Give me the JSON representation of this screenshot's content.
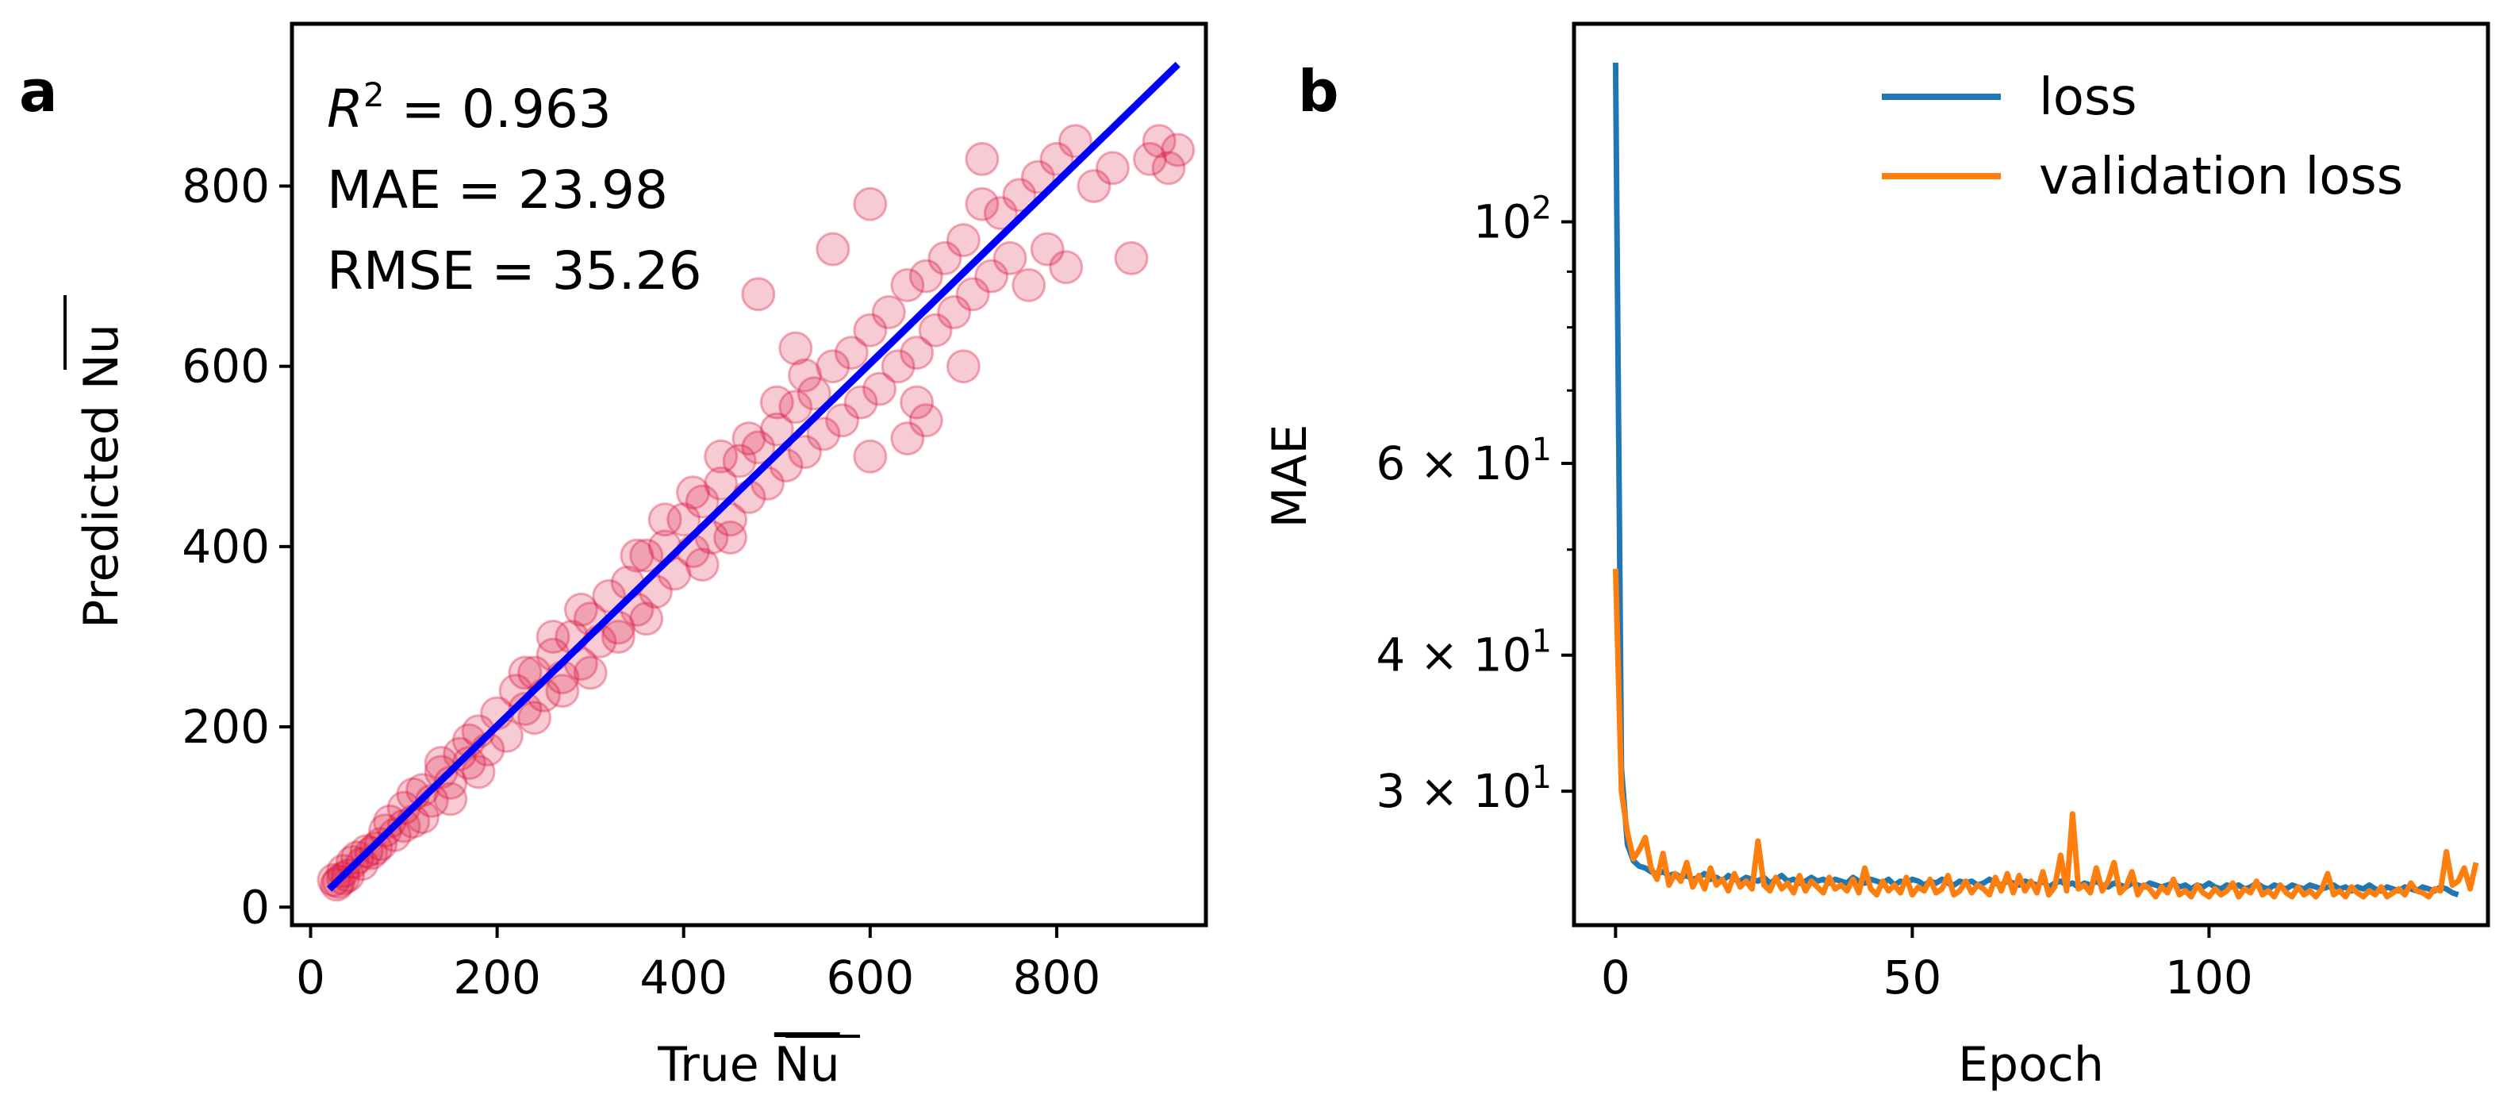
{
  "panels": {
    "a": {
      "letter": "a"
    },
    "b": {
      "letter": "b"
    }
  },
  "chart_data": [
    {
      "type": "scatter",
      "panel": "a",
      "xlabel": "True Nu",
      "ylabel": "Predicted Nu",
      "xlabel_parts": [
        "True ",
        "Nu"
      ],
      "ylabel_parts": [
        "Predicted ",
        "Nu"
      ],
      "xlim": [
        -20,
        960
      ],
      "ylim": [
        -20,
        980
      ],
      "xticks": [
        0,
        200,
        400,
        600,
        800
      ],
      "yticks": [
        0,
        200,
        400,
        600,
        800
      ],
      "xtick_labels": [
        "0",
        "200",
        "400",
        "600",
        "800"
      ],
      "ytick_labels": [
        "0",
        "200",
        "400",
        "600",
        "800"
      ],
      "annotations": {
        "r2_symbol": "R",
        "r2_exp": "2",
        "r2_value": " = 0.963",
        "mae": "MAE = 23.98",
        "rmse": "RMSE = 35.26"
      },
      "fit_line": {
        "x": [
          20,
          930
        ],
        "y": [
          20,
          935
        ],
        "color": "#0000ff"
      },
      "point_color": "#dc143c",
      "points": [
        [
          25,
          30
        ],
        [
          30,
          28
        ],
        [
          35,
          40
        ],
        [
          40,
          35
        ],
        [
          45,
          50
        ],
        [
          55,
          48
        ],
        [
          60,
          62
        ],
        [
          70,
          65
        ],
        [
          80,
          85
        ],
        [
          90,
          80
        ],
        [
          100,
          110
        ],
        [
          110,
          95
        ],
        [
          120,
          130
        ],
        [
          130,
          118
        ],
        [
          140,
          150
        ],
        [
          150,
          138
        ],
        [
          160,
          170
        ],
        [
          170,
          160
        ],
        [
          180,
          195
        ],
        [
          190,
          175
        ],
        [
          200,
          215
        ],
        [
          210,
          190
        ],
        [
          220,
          240
        ],
        [
          230,
          220
        ],
        [
          240,
          260
        ],
        [
          250,
          235
        ],
        [
          260,
          280
        ],
        [
          270,
          255
        ],
        [
          280,
          300
        ],
        [
          290,
          270
        ],
        [
          300,
          320
        ],
        [
          310,
          295
        ],
        [
          320,
          345
        ],
        [
          330,
          310
        ],
        [
          340,
          360
        ],
        [
          350,
          330
        ],
        [
          360,
          390
        ],
        [
          370,
          350
        ],
        [
          380,
          400
        ],
        [
          390,
          370
        ],
        [
          400,
          430
        ],
        [
          410,
          395
        ],
        [
          420,
          450
        ],
        [
          430,
          410
        ],
        [
          440,
          470
        ],
        [
          450,
          430
        ],
        [
          460,
          495
        ],
        [
          470,
          455
        ],
        [
          480,
          510
        ],
        [
          490,
          470
        ],
        [
          500,
          530
        ],
        [
          510,
          490
        ],
        [
          520,
          555
        ],
        [
          530,
          505
        ],
        [
          540,
          570
        ],
        [
          550,
          525
        ],
        [
          560,
          600
        ],
        [
          570,
          540
        ],
        [
          580,
          615
        ],
        [
          590,
          560
        ],
        [
          600,
          640
        ],
        [
          610,
          575
        ],
        [
          620,
          660
        ],
        [
          630,
          600
        ],
        [
          640,
          690
        ],
        [
          650,
          615
        ],
        [
          660,
          700
        ],
        [
          670,
          640
        ],
        [
          680,
          720
        ],
        [
          690,
          660
        ],
        [
          700,
          740
        ],
        [
          710,
          680
        ],
        [
          720,
          780
        ],
        [
          730,
          700
        ],
        [
          740,
          770
        ],
        [
          750,
          720
        ],
        [
          760,
          790
        ],
        [
          770,
          690
        ],
        [
          780,
          810
        ],
        [
          790,
          730
        ],
        [
          800,
          830
        ],
        [
          810,
          710
        ],
        [
          820,
          850
        ],
        [
          840,
          800
        ],
        [
          860,
          820
        ],
        [
          880,
          720
        ],
        [
          900,
          830
        ],
        [
          910,
          850
        ],
        [
          920,
          820
        ],
        [
          930,
          840
        ],
        [
          480,
          680
        ],
        [
          560,
          730
        ],
        [
          520,
          620
        ],
        [
          600,
          780
        ],
        [
          650,
          560
        ],
        [
          700,
          600
        ],
        [
          640,
          520
        ],
        [
          720,
          830
        ],
        [
          600,
          500
        ],
        [
          660,
          540
        ],
        [
          150,
          120
        ],
        [
          180,
          150
        ],
        [
          120,
          100
        ],
        [
          240,
          210
        ],
        [
          270,
          240
        ],
        [
          300,
          260
        ],
        [
          330,
          300
        ],
        [
          360,
          320
        ],
        [
          420,
          380
        ],
        [
          450,
          410
        ],
        [
          230,
          260
        ],
        [
          260,
          300
        ],
        [
          290,
          330
        ],
        [
          350,
          390
        ],
        [
          380,
          430
        ],
        [
          410,
          460
        ],
        [
          440,
          500
        ],
        [
          470,
          520
        ],
        [
          500,
          560
        ],
        [
          530,
          590
        ],
        [
          100,
          90
        ],
        [
          85,
          95
        ],
        [
          75,
          70
        ],
        [
          65,
          60
        ],
        [
          50,
          55
        ],
        [
          35,
          32
        ],
        [
          28,
          25
        ],
        [
          110,
          125
        ],
        [
          140,
          160
        ],
        [
          170,
          185
        ]
      ]
    },
    {
      "type": "line",
      "panel": "b",
      "xlabel": "Epoch",
      "ylabel": "MAE",
      "xlim": [
        -7,
        147
      ],
      "ylim_log": [
        22.6,
        152
      ],
      "yscale": "log",
      "xticks": [
        0,
        50,
        100
      ],
      "xtick_labels": [
        "0",
        "50",
        "100"
      ],
      "ytick_major": [
        {
          "value": 100,
          "base": "10",
          "exp": "2",
          "mult": ""
        },
        {
          "value": 60,
          "base": "10",
          "exp": "1",
          "mult": "6 × "
        },
        {
          "value": 40,
          "base": "10",
          "exp": "1",
          "mult": "4 × "
        },
        {
          "value": 30,
          "base": "10",
          "exp": "1",
          "mult": "3 × "
        }
      ],
      "ytick_minor": [
        90,
        80,
        70,
        50
      ],
      "legend_position": "top-right",
      "series": [
        {
          "name": "loss",
          "color": "#1f77b4",
          "x_start": 0,
          "values": [
            140,
            31.5,
            26.8,
            25.9,
            25.6,
            25.5,
            25.3,
            25.2,
            25.3,
            25.1,
            25.2,
            25.0,
            25.1,
            24.9,
            25.0,
            25.2,
            24.9,
            25.0,
            24.8,
            25.1,
            24.9,
            24.8,
            25.0,
            24.9,
            24.8,
            25.0,
            24.7,
            24.9,
            25.1,
            24.8,
            24.9,
            24.7,
            24.8,
            25.0,
            24.8,
            24.9,
            24.7,
            24.9,
            24.8,
            24.7,
            25.0,
            24.8,
            24.7,
            24.9,
            24.8,
            24.7,
            24.9,
            24.6,
            24.8,
            24.7,
            24.9,
            24.8,
            24.6,
            24.8,
            24.7,
            24.9,
            24.7,
            24.6,
            24.8,
            24.7,
            24.8,
            24.6,
            24.7,
            24.9,
            24.7,
            24.6,
            24.8,
            24.7,
            24.6,
            24.8,
            24.7,
            24.6,
            24.8,
            24.5,
            24.7,
            24.8,
            24.6,
            24.7,
            24.5,
            24.7,
            24.6,
            24.8,
            24.6,
            24.5,
            24.7,
            24.6,
            24.5,
            24.7,
            24.6,
            24.5,
            24.7,
            24.6,
            24.5,
            24.6,
            24.7,
            24.5,
            24.6,
            24.4,
            24.6,
            24.5,
            24.7,
            24.5,
            24.4,
            24.6,
            24.5,
            24.6,
            24.4,
            24.5,
            24.7,
            24.5,
            24.4,
            24.6,
            24.5,
            24.4,
            24.6,
            24.5,
            24.4,
            24.6,
            24.5,
            24.4,
            24.5,
            24.6,
            24.4,
            24.5,
            24.3,
            24.5,
            24.4,
            24.6,
            24.4,
            24.3,
            24.5,
            24.4,
            24.3,
            24.5,
            24.4,
            24.3,
            24.5,
            24.4,
            24.3,
            24.5,
            24.4,
            24.2,
            24.1
          ]
        },
        {
          "name": "validation loss",
          "color": "#ff7f0e",
          "x_start": 0,
          "values": [
            48,
            30,
            27.5,
            26,
            26.5,
            27.2,
            25.5,
            24.9,
            26.3,
            24.6,
            25.2,
            24.8,
            25.8,
            24.5,
            25.1,
            24.4,
            25.5,
            24.6,
            24.9,
            24.3,
            25.2,
            24.5,
            24.8,
            24.4,
            27.0,
            24.6,
            24.3,
            25.0,
            24.4,
            24.7,
            24.2,
            25.1,
            24.3,
            24.8,
            24.5,
            24.2,
            25.0,
            24.4,
            24.6,
            24.3,
            24.9,
            24.2,
            25.5,
            24.4,
            24.1,
            24.8,
            24.3,
            24.6,
            24.2,
            25.0,
            24.1,
            24.5,
            24.3,
            24.9,
            24.2,
            24.4,
            25.1,
            24.1,
            24.3,
            24.8,
            24.2,
            24.6,
            24.4,
            24.1,
            25.0,
            24.3,
            25.2,
            24.2,
            25.1,
            24.3,
            24.8,
            24.2,
            25.3,
            24.1,
            24.5,
            26.2,
            24.3,
            28.6,
            24.4,
            24.6,
            24.2,
            25.5,
            24.3,
            24.8,
            25.8,
            24.2,
            24.5,
            25.3,
            24.1,
            24.6,
            24.4,
            24.0,
            24.5,
            24.2,
            24.9,
            24.1,
            24.3,
            24.0,
            24.6,
            24.2,
            24.0,
            24.4,
            24.1,
            24.3,
            24.7,
            24.0,
            24.4,
            24.2,
            24.8,
            24.1,
            24.3,
            24.0,
            24.6,
            24.2,
            24.0,
            24.5,
            24.1,
            24.3,
            24.0,
            24.4,
            25.2,
            24.1,
            24.3,
            24.0,
            24.5,
            24.2,
            24.0,
            24.3,
            24.1,
            24.5,
            24.0,
            24.2,
            24.4,
            24.1,
            24.7,
            24.3,
            24.2,
            24.0,
            24.4,
            24.3,
            26.4,
            24.6,
            24.8,
            25.5,
            24.4,
            25.8
          ]
        }
      ]
    }
  ]
}
